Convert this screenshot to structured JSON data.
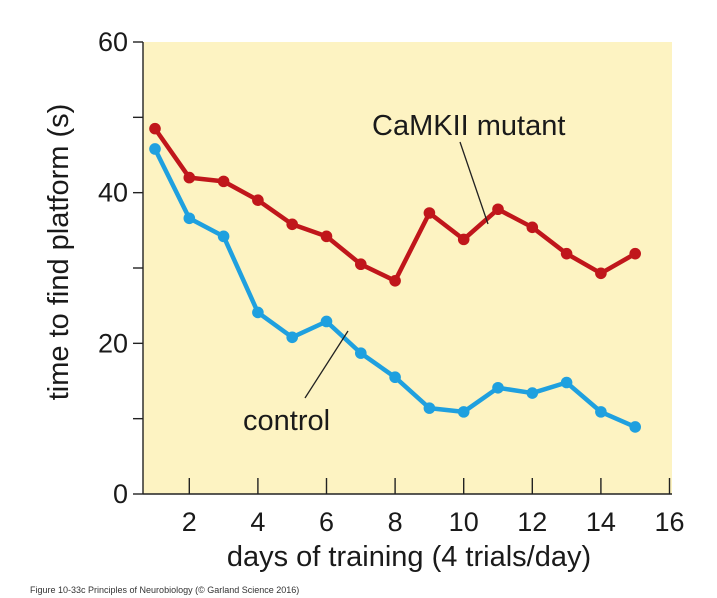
{
  "chart_data": {
    "type": "line",
    "title": "",
    "xlabel": "days of training (4 trials/day)",
    "ylabel": "time to find platform (s)",
    "xlim": [
      0.6,
      16
    ],
    "ylim": [
      0,
      60
    ],
    "xticks": [
      2,
      4,
      6,
      8,
      10,
      12,
      14,
      16
    ],
    "yticks_labeled": [
      0,
      20,
      40,
      60
    ],
    "yticks_minor": [
      10,
      30,
      50
    ],
    "grid": false,
    "background_color": "#fdf3c2",
    "series": [
      {
        "name": "CaMKII mutant",
        "color": "#c0161b",
        "x": [
          1,
          2,
          3,
          4,
          5,
          6,
          7,
          8,
          9,
          10,
          11,
          12,
          13,
          14,
          15
        ],
        "y": [
          48.5,
          42,
          41.5,
          39,
          35.8,
          34.2,
          30.5,
          28.3,
          37.3,
          33.8,
          37.8,
          35.4,
          31.9,
          29.3,
          31.9
        ]
      },
      {
        "name": "control",
        "color": "#1fa0df",
        "x": [
          1,
          2,
          3,
          4,
          5,
          6,
          7,
          8,
          9,
          10,
          11,
          12,
          13,
          14,
          15
        ],
        "y": [
          45.8,
          36.6,
          34.2,
          24.1,
          20.8,
          22.9,
          18.7,
          15.5,
          11.4,
          10.9,
          14.1,
          13.4,
          14.8,
          10.9,
          8.9
        ]
      }
    ],
    "annotations": [
      "CaMKII mutant",
      "control"
    ]
  },
  "caption": "Figure 10-33c Principles of Neurobiology (© Garland Science 2016)"
}
